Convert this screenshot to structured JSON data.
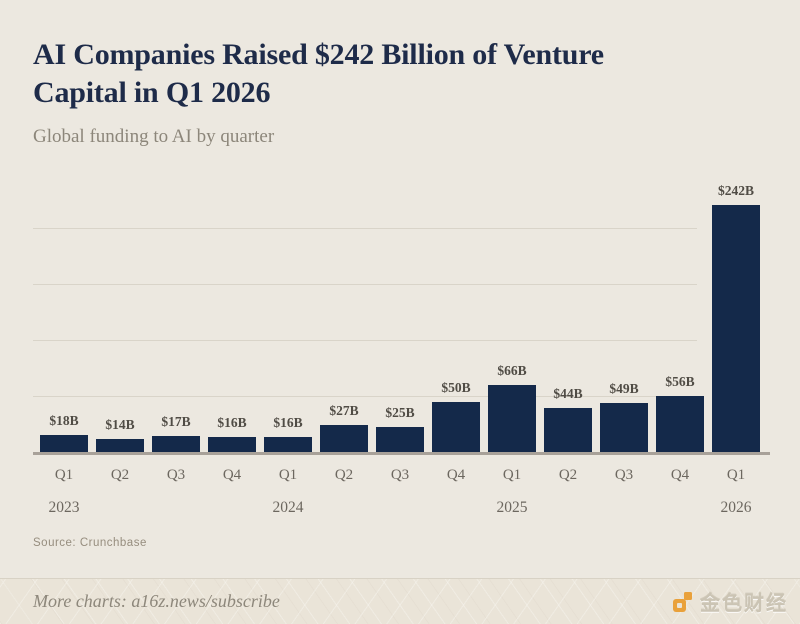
{
  "header": {
    "title_line1": "AI Companies Raised $242 Billion of Venture",
    "title_line2": "Capital in Q1 2026",
    "subtitle": "Global funding to AI by quarter"
  },
  "chart_data": {
    "type": "bar",
    "title": "AI Companies Raised $242 Billion of Venture Capital in Q1 2026",
    "subtitle": "Global funding to AI by quarter",
    "unit": "USD billions",
    "categories": [
      "Q1",
      "Q2",
      "Q3",
      "Q4",
      "Q1",
      "Q2",
      "Q3",
      "Q4",
      "Q1",
      "Q2",
      "Q3",
      "Q4",
      "Q1"
    ],
    "values": [
      18,
      14,
      17,
      16,
      16,
      27,
      25,
      50,
      66,
      44,
      49,
      56,
      242
    ],
    "bar_labels": [
      "$18B",
      "$14B",
      "$17B",
      "$16B",
      "$16B",
      "$27B",
      "$25B",
      "$50B",
      "$66B",
      "$44B",
      "$49B",
      "$56B",
      "$242B"
    ],
    "year_markers": [
      {
        "index": 0,
        "label": "2023"
      },
      {
        "index": 4,
        "label": "2024"
      },
      {
        "index": 8,
        "label": "2025"
      },
      {
        "index": 12,
        "label": "2026"
      }
    ],
    "ylim": [
      0,
      250
    ],
    "gridline_count": 4,
    "grid": true,
    "legend": "none",
    "source": "Source: Crunchbase"
  },
  "footer": {
    "more_charts": "More charts: a16z.news/subscribe",
    "watermark_text": "金色财经",
    "watermark_icon": "jinse-finance-logo"
  },
  "colors": {
    "background": "#ECE8E0",
    "bar": "#14294A",
    "title": "#1E2B49",
    "grid": "#D9D4C9",
    "baseline": "#A8A199",
    "accent": "#E9A13B"
  }
}
